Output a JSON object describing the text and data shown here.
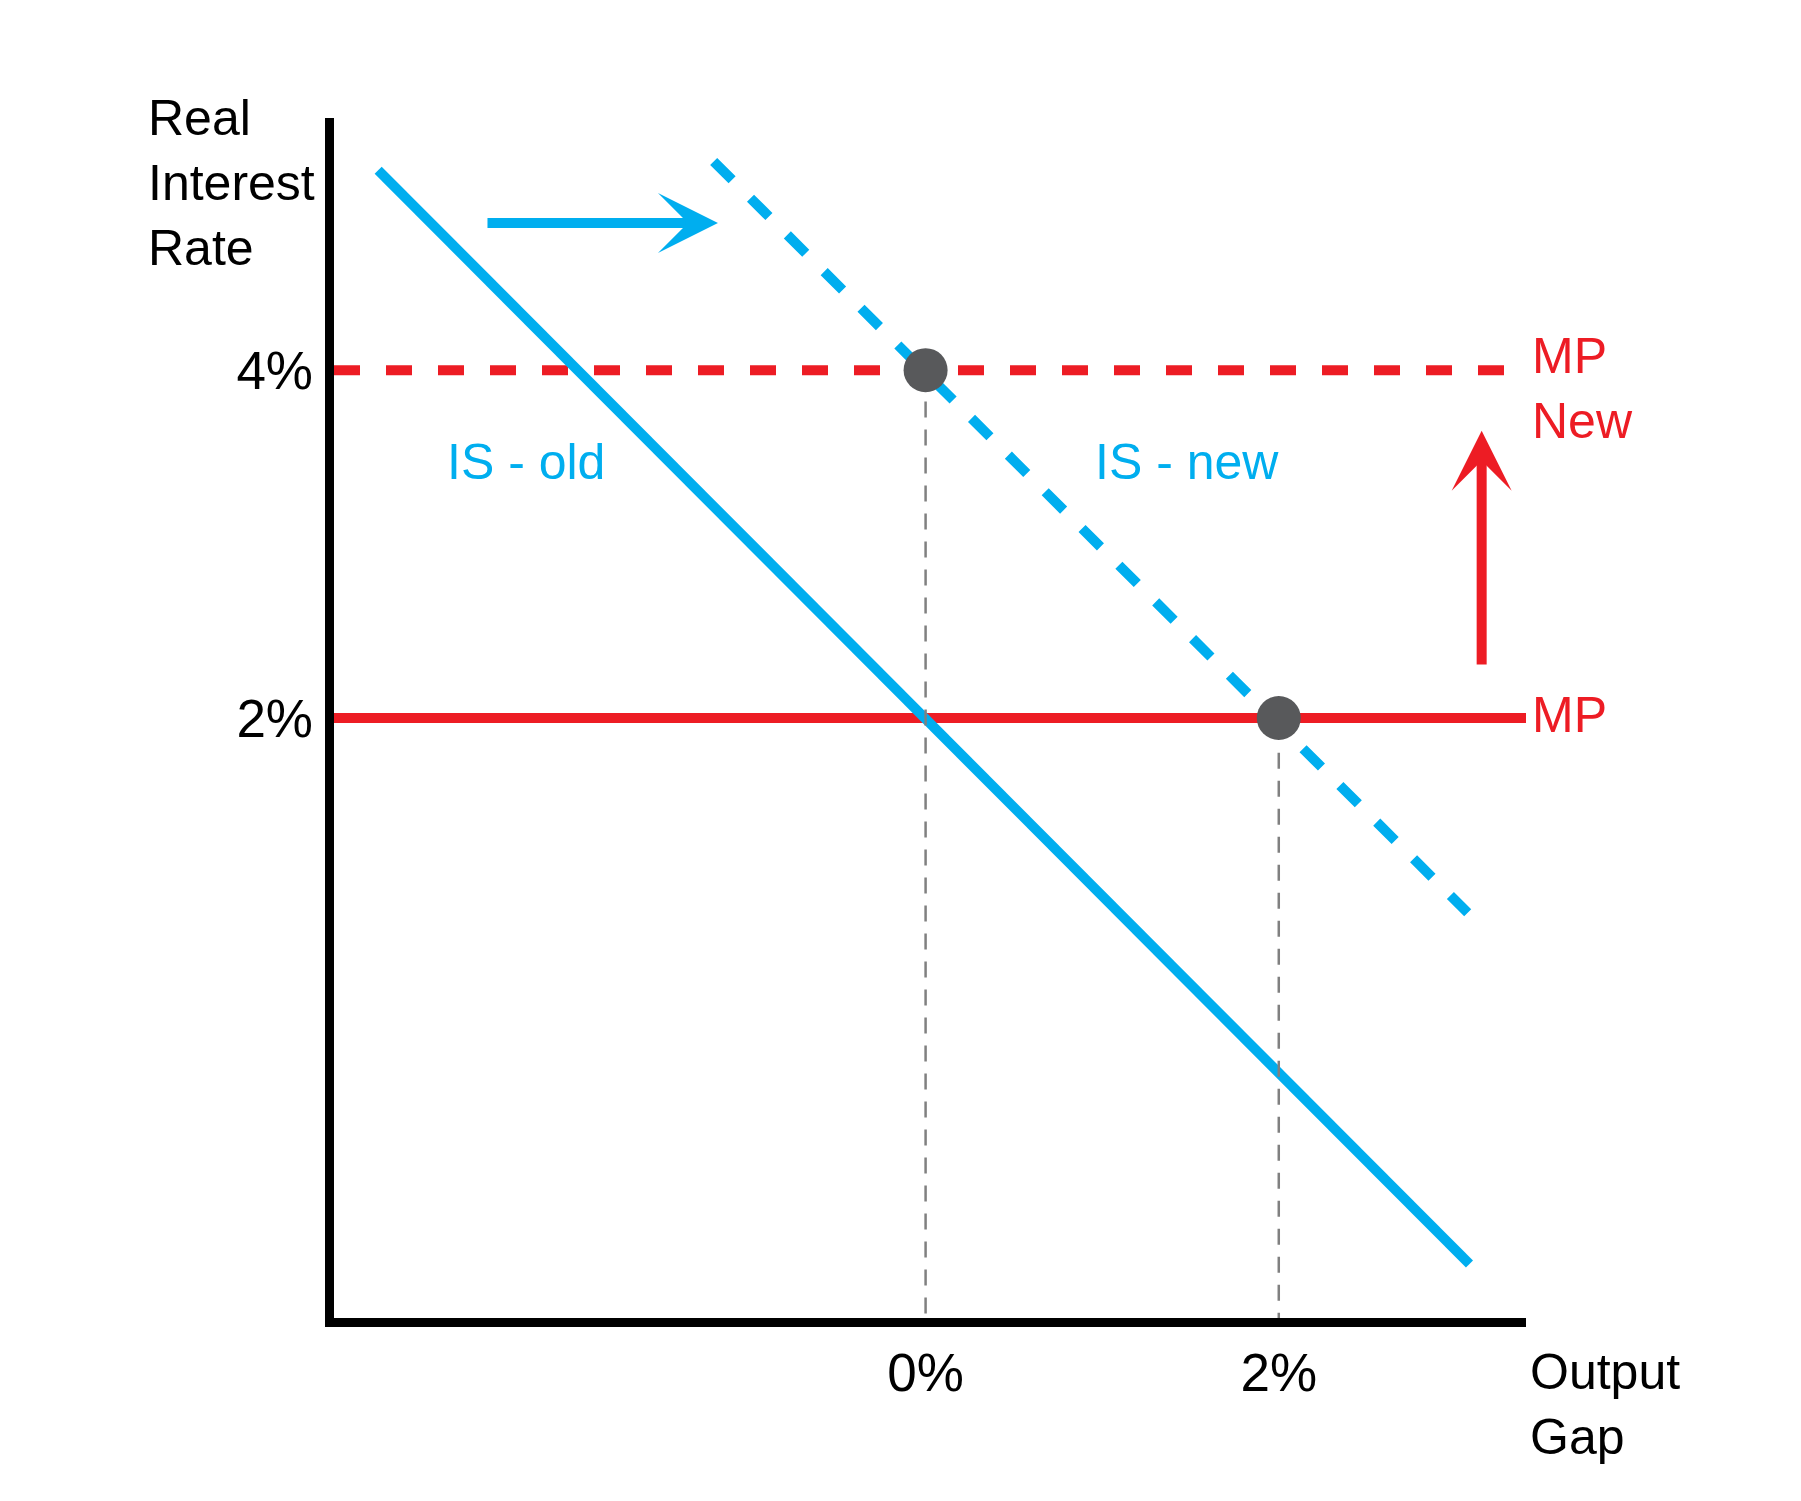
{
  "chart_data": {
    "type": "line",
    "xlabel": "Output\nGap",
    "ylabel": "Real\nInterest\nRate",
    "xlim": [
      -3.35,
      3.4
    ],
    "ylim": [
      -1.45,
      5.45
    ],
    "xticks": [
      {
        "value": 0,
        "label": "0%"
      },
      {
        "value": 2,
        "label": "2%"
      }
    ],
    "yticks": [
      {
        "value": 2,
        "label": "2%"
      },
      {
        "value": 4,
        "label": "4%"
      }
    ],
    "series": [
      {
        "name": "IS - old",
        "color": "#00aeef",
        "x": [
          -3.1,
          3.08
        ],
        "values": [
          5.15,
          -1.14
        ]
      },
      {
        "name": "IS - new",
        "color": "#00aeef",
        "x": [
          -1.2,
          3.07
        ],
        "values": [
          5.2,
          0.88
        ],
        "line_style": "dashed"
      },
      {
        "color": "#808080",
        "x": [
          0,
          0
        ],
        "values": [
          3.82,
          -1.45
        ],
        "line_style": "dashed"
      },
      {
        "color": "#808080",
        "x": [
          2,
          2
        ],
        "values": [
          1.8,
          -1.45
        ],
        "line_style": "dashed"
      },
      {
        "type": "scatter",
        "color": "#58595b",
        "x": [
          0,
          2
        ],
        "values": [
          4,
          2
        ],
        "marker": "circle"
      }
    ],
    "ref_lines": [
      {
        "axis": "y",
        "value": 2,
        "label": "MP",
        "color": "#ed1c24",
        "line_style": "solid"
      },
      {
        "axis": "y",
        "value": 4,
        "label": "MP\nNew",
        "color": "#ed1c24",
        "line_style": "dashed"
      }
    ]
  }
}
